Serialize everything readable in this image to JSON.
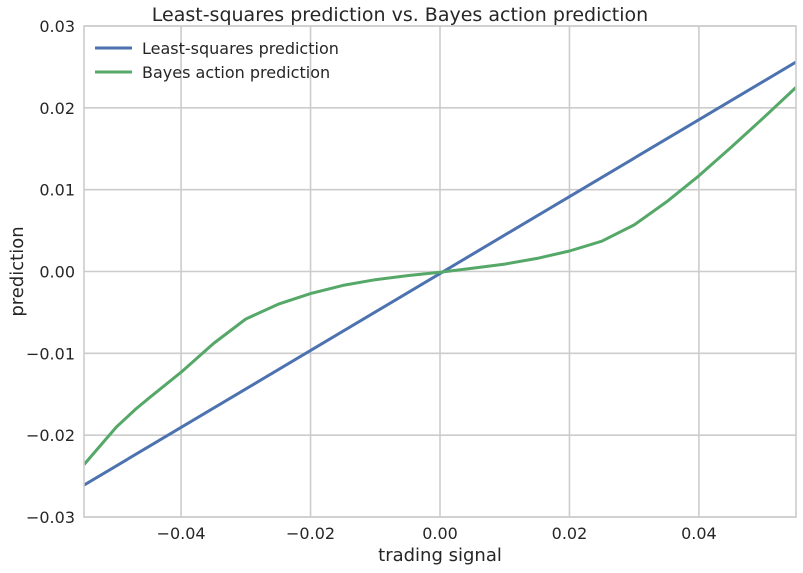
{
  "chart_data": {
    "type": "line",
    "title": "Least-squares prediction vs. Bayes action prediction",
    "xlabel": "trading signal",
    "ylabel": "prediction",
    "xlim": [
      -0.055,
      0.055
    ],
    "ylim": [
      -0.03,
      0.03
    ],
    "grid": true,
    "legend_placement": "top-left",
    "x_ticks": [
      -0.04,
      -0.02,
      0.0,
      0.02,
      0.04
    ],
    "x_tick_labels": [
      "−0.04",
      "−0.02",
      "0.00",
      "0.02",
      "0.04"
    ],
    "y_ticks": [
      -0.03,
      -0.02,
      -0.01,
      0.0,
      0.01,
      0.02,
      0.03
    ],
    "y_tick_labels": [
      "−0.03",
      "−0.02",
      "−0.01",
      "0.00",
      "0.01",
      "0.02",
      "0.03"
    ],
    "series": [
      {
        "name": "Least-squares prediction",
        "color": "#4c72b0",
        "x": [
          -0.055,
          0.055
        ],
        "y": [
          -0.0261,
          0.0256
        ]
      },
      {
        "name": "Bayes action prediction",
        "color": "#55a868",
        "x": [
          -0.055,
          -0.05,
          -0.047,
          -0.045,
          -0.04,
          -0.035,
          -0.03,
          -0.025,
          -0.02,
          -0.015,
          -0.01,
          -0.005,
          0.0,
          0.005,
          0.01,
          0.015,
          0.02,
          0.025,
          0.03,
          0.035,
          0.04,
          0.045,
          0.05,
          0.055
        ],
        "y": [
          -0.0236,
          -0.019,
          -0.0168,
          -0.0155,
          -0.0123,
          -0.0088,
          -0.0058,
          -0.004,
          -0.0027,
          -0.0017,
          -0.001,
          -0.0005,
          -0.0001,
          0.0004,
          0.0009,
          0.0016,
          0.0025,
          0.0037,
          0.0057,
          0.0085,
          0.0117,
          0.0152,
          0.0188,
          0.0225
        ]
      }
    ]
  }
}
